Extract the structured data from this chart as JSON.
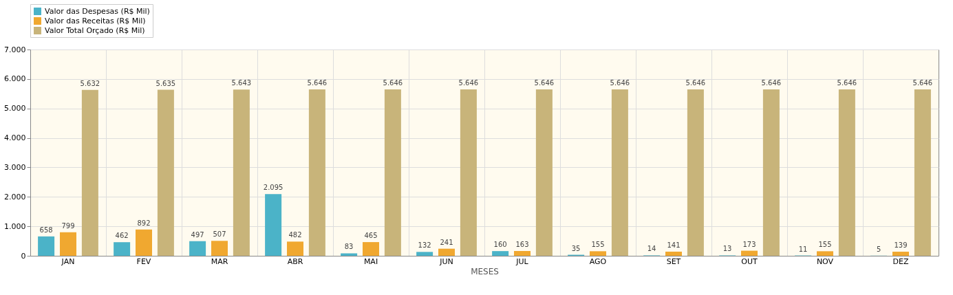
{
  "chart_data": {
    "type": "bar",
    "xlabel": "MESES",
    "categories": [
      "JAN",
      "FEV",
      "MAR",
      "ABR",
      "MAI",
      "JUN",
      "JUL",
      "AGO",
      "SET",
      "OUT",
      "NOV",
      "DEZ"
    ],
    "series": [
      {
        "name": "Valor das Despesas (R$ Mil)",
        "color": "#4bb3c8",
        "values": [
          658,
          462,
          497,
          2095,
          83,
          132,
          160,
          35,
          14,
          13,
          11,
          5
        ],
        "value_labels": [
          "658",
          "462",
          "497",
          "2.095",
          "83",
          "132",
          "160",
          "35",
          "14",
          "13",
          "11",
          "5"
        ]
      },
      {
        "name": "Valor das Receitas (R$ Mil)",
        "color": "#f0a830",
        "values": [
          799,
          892,
          507,
          482,
          465,
          241,
          163,
          155,
          141,
          173,
          155,
          139
        ],
        "value_labels": [
          "799",
          "892",
          "507",
          "482",
          "465",
          "241",
          "163",
          "155",
          "141",
          "173",
          "155",
          "139"
        ]
      },
      {
        "name": "Valor Total Orçado (R$ Mil)",
        "color": "#c8b47a",
        "values": [
          5632,
          5635,
          5643,
          5646,
          5646,
          5646,
          5646,
          5646,
          5646,
          5646,
          5646,
          5646
        ],
        "value_labels": [
          "5.632",
          "5.635",
          "5.643",
          "5.646",
          "5.646",
          "5.646",
          "5.646",
          "5.646",
          "5.646",
          "5.646",
          "5.646",
          "5.646"
        ]
      }
    ],
    "ylim": [
      0,
      7000
    ],
    "yticks": [
      {
        "value": 0,
        "label": "0"
      },
      {
        "value": 1000,
        "label": "1.000"
      },
      {
        "value": 2000,
        "label": "2.000"
      },
      {
        "value": 3000,
        "label": "3.000"
      },
      {
        "value": 4000,
        "label": "4.000"
      },
      {
        "value": 5000,
        "label": "5.000"
      },
      {
        "value": 6000,
        "label": "6.000"
      },
      {
        "value": 7000,
        "label": "7.000"
      }
    ],
    "grid": true,
    "legend": "top"
  }
}
